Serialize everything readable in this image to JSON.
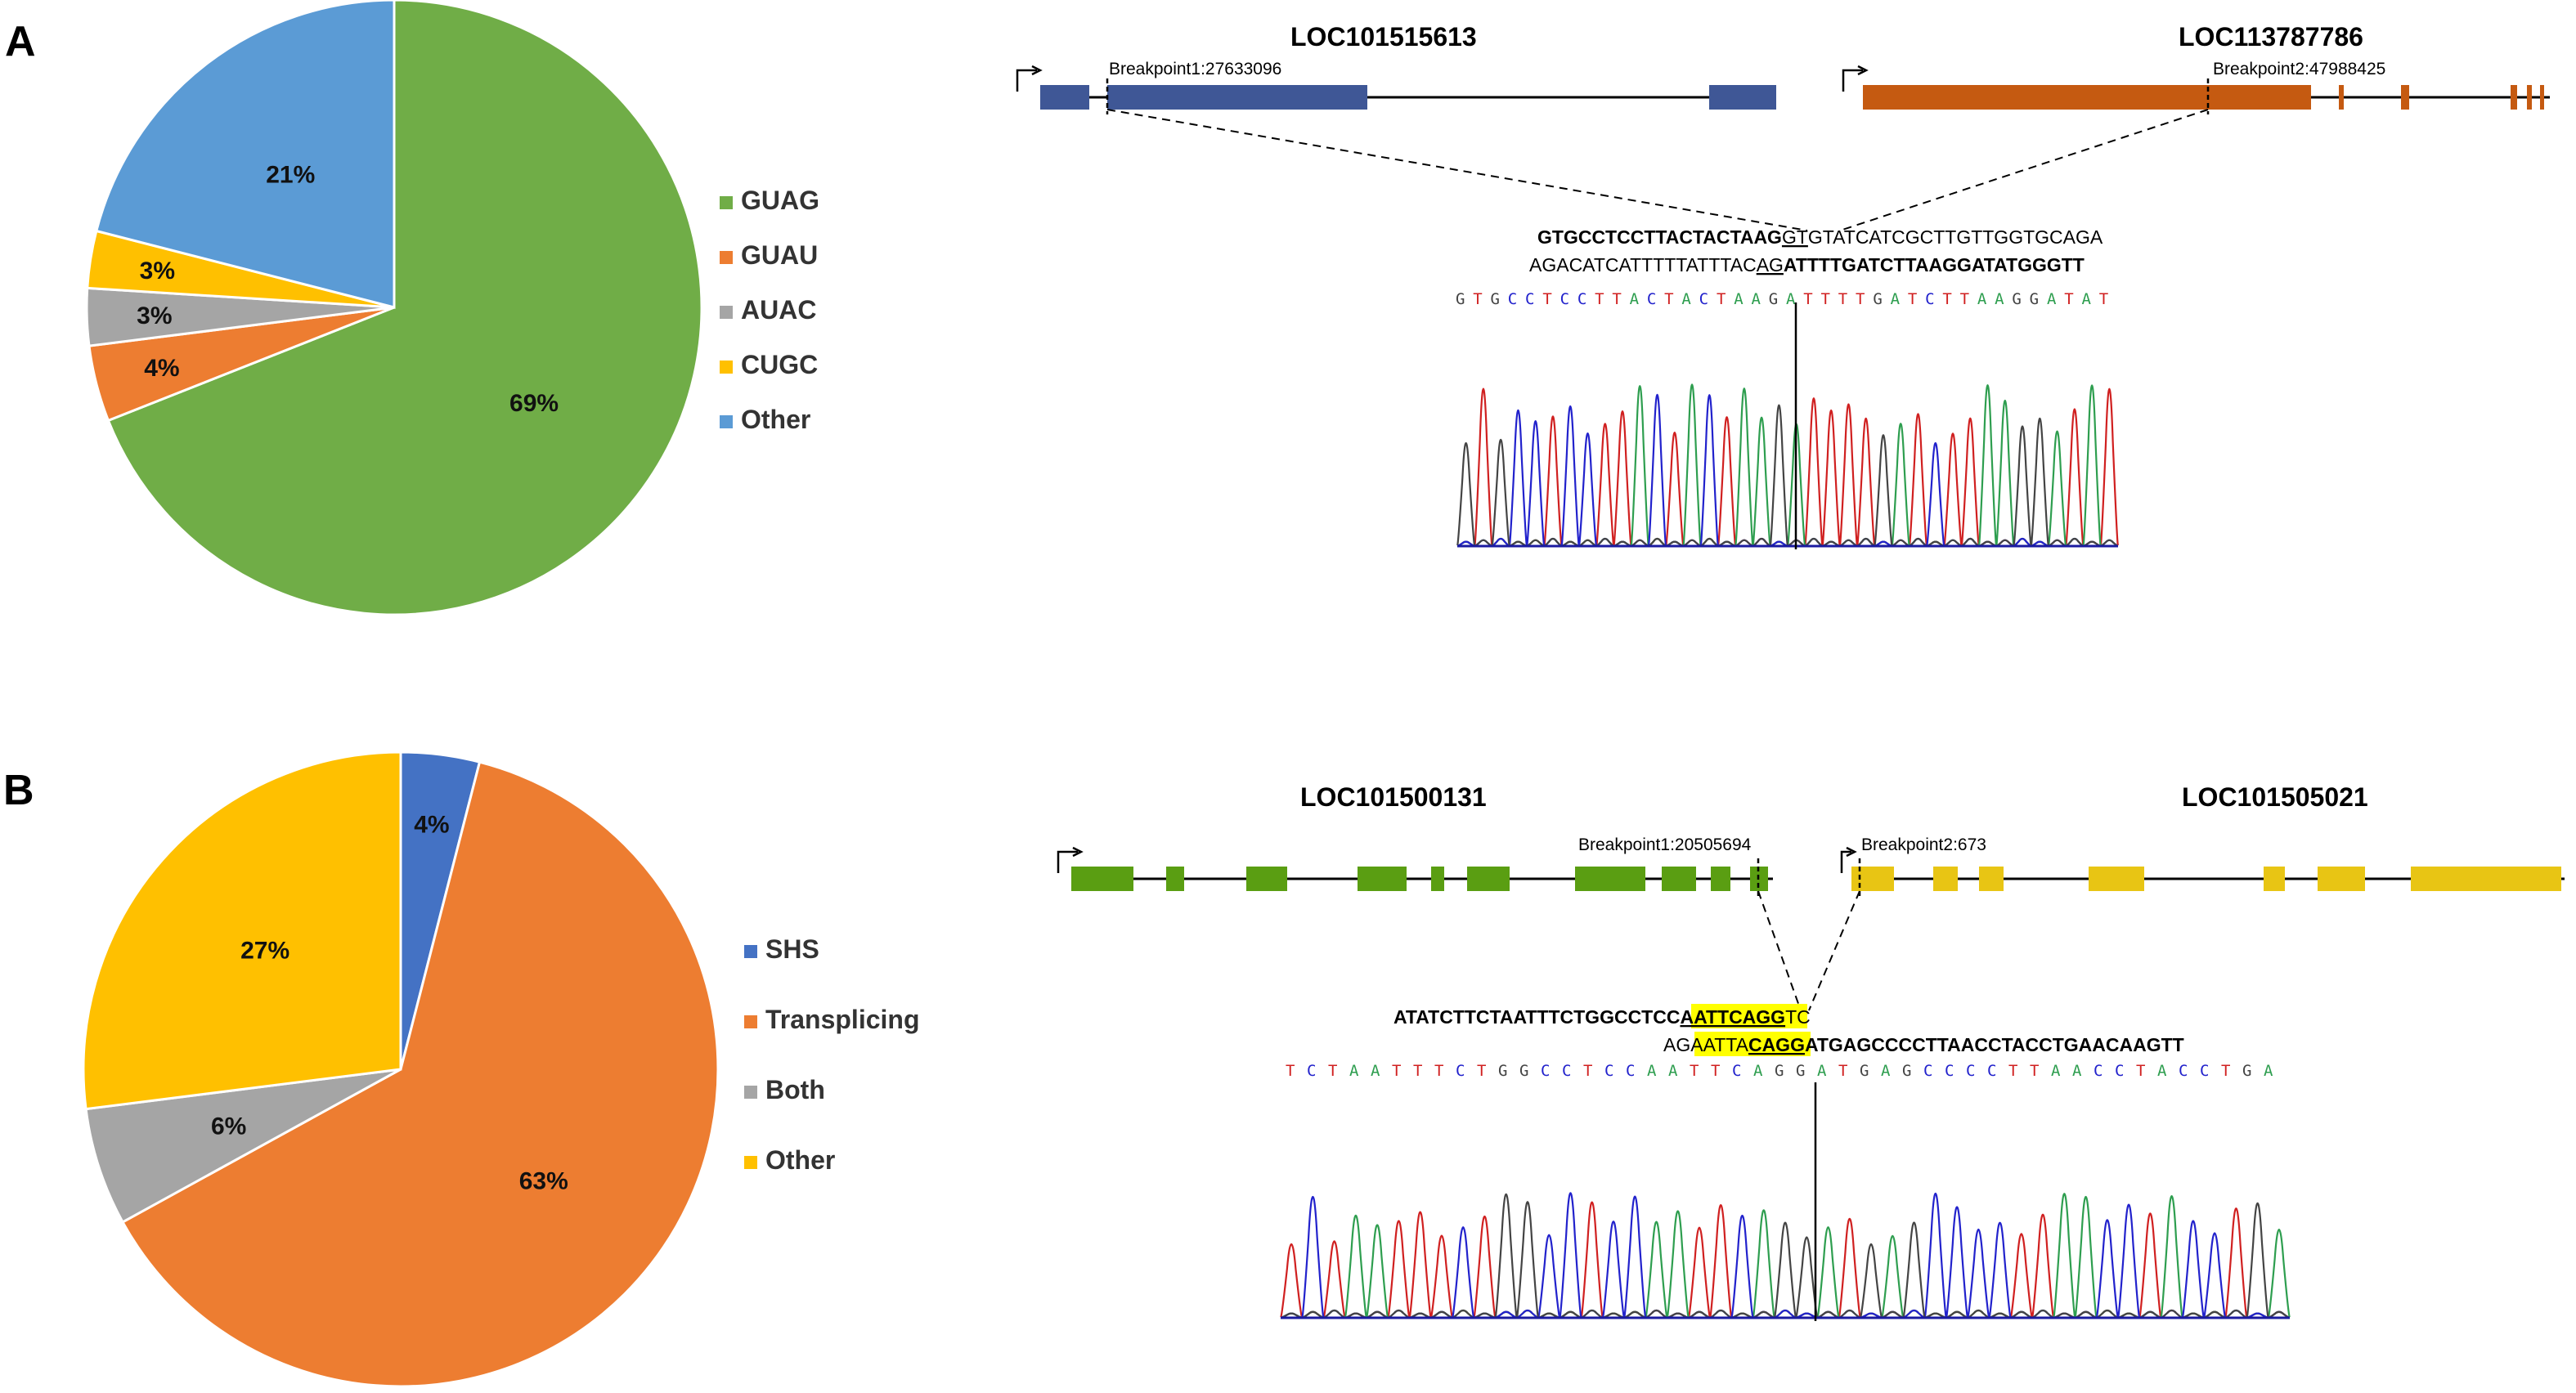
{
  "panels": {
    "a": {
      "label": "A"
    },
    "b": {
      "label": "B"
    }
  },
  "chart_data": [
    {
      "type": "pie",
      "panel": "A",
      "categories": [
        "GUAG",
        "GUAU",
        "AUAC",
        "CUGC",
        "Other"
      ],
      "values": [
        69,
        4,
        3,
        3,
        21
      ],
      "labels": [
        "69%",
        "4%",
        "3%",
        "3%",
        "21%"
      ],
      "colors": [
        "#70AD47",
        "#ED7D31",
        "#A5A5A5",
        "#FFC000",
        "#5B9BD5"
      ],
      "legend_position": "right"
    },
    {
      "type": "pie",
      "panel": "B",
      "categories": [
        "SHS",
        "Transplicing",
        "Both",
        "Other"
      ],
      "values": [
        4,
        63,
        6,
        27
      ],
      "labels": [
        "4%",
        "63%",
        "6%",
        "27%"
      ],
      "colors": [
        "#4472C4",
        "#ED7D31",
        "#A5A5A5",
        "#FFC000"
      ],
      "legend_position": "right"
    }
  ],
  "fusion_a": {
    "gene1": "LOC101515613",
    "gene2": "LOC113787786",
    "breakpoint1": "Breakpoint1:27633096",
    "breakpoint2": "Breakpoint2:47988425",
    "gene1_color": "#3F5796",
    "gene2_color": "#C55A11",
    "line1": {
      "bold": "GTGCCTCCTTACTACTAAG",
      "underlined": "GT",
      "rest": "GTATCATCGCTTGTTGGTGCAGA"
    },
    "line2": {
      "plain": "AGACATCATTTTTATTTAC",
      "underlined": "AG",
      "bold": "ATTTTGATCTTAAGGATATGGGTT"
    },
    "read": "GTGCCTCCTTACTACTAAGATTTTGATCTTAAGGATAT"
  },
  "fusion_b": {
    "gene1": "LOC101500131",
    "gene2": "LOC101505021",
    "breakpoint1": "Breakpoint1:20505694",
    "breakpoint2": "Breakpoint2:673",
    "gene1_color": "#5A9E12",
    "gene2_color": "#E8C514",
    "line1": {
      "bold": "ATATCTTCTAATTTCTGGCCTCC",
      "highlight": "AATTCAGG",
      "rest": "TC"
    },
    "line2": {
      "plain": "AG",
      "highlight_plain": "AATTA",
      "highlight_bold": "CAGG",
      "bold": "ATGAGCCCCTTAACCTACCTGAACAAGTT"
    },
    "read": "TCTAATTTCTGGCCTCCAATTCAGGATGAGCCCCTTAACCTACCTGA"
  }
}
